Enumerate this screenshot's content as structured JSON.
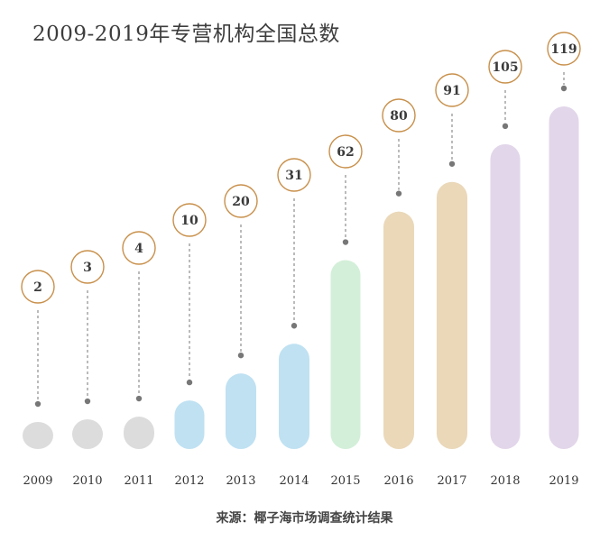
{
  "title": "2009-2019年专营机构全国总数",
  "source": "来源：椰子海市场调查统计结果",
  "chart_data": {
    "type": "bar",
    "categories": [
      "2009",
      "2010",
      "2011",
      "2012",
      "2013",
      "2014",
      "2015",
      "2016",
      "2017",
      "2018",
      "2019"
    ],
    "values": [
      2,
      3,
      4,
      10,
      20,
      31,
      62,
      80,
      91,
      105,
      119
    ],
    "ylim": [
      0,
      119
    ],
    "grid": false,
    "data_label_style": "circled value connected to bar top by dashed line",
    "colors": [
      "#dcdcdc",
      "#dcdcdc",
      "#dcdcdc",
      "#bfe1f2",
      "#bfe1f2",
      "#bfe1f2",
      "#d3efd9",
      "#ead8b9",
      "#ead8b9",
      "#e2d6ea",
      "#e2d6ea"
    ],
    "label_circle_color": "#c8904b",
    "connector_color": "#777777"
  }
}
